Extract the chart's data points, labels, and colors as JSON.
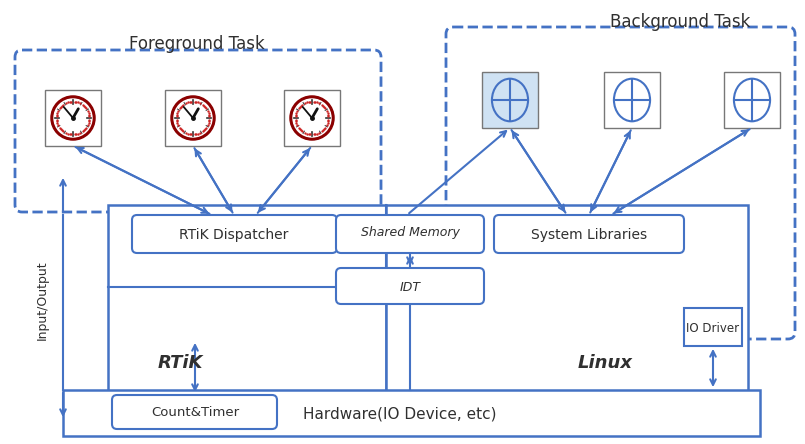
{
  "bg_color": "#ffffff",
  "arrow_color": "#4472c4",
  "fg_label": "Foreground Task",
  "bg_label": "Background Task",
  "rtik_label": "RTiK",
  "linux_label": "Linux",
  "dispatcher_label": "RTiK Dispatcher",
  "shared_memory_label": "Shared Memory",
  "idt_label": "IDT",
  "sys_lib_label": "System Libraries",
  "io_driver_label": "IO Driver",
  "count_timer_label": "Count&Timer",
  "hardware_label": "Hardware(IO Device, etc)",
  "io_label": "Input/Output",
  "task_bg_blue": "#cfe2f3",
  "clock_dark": "#8b0000",
  "text_color": "#303030"
}
